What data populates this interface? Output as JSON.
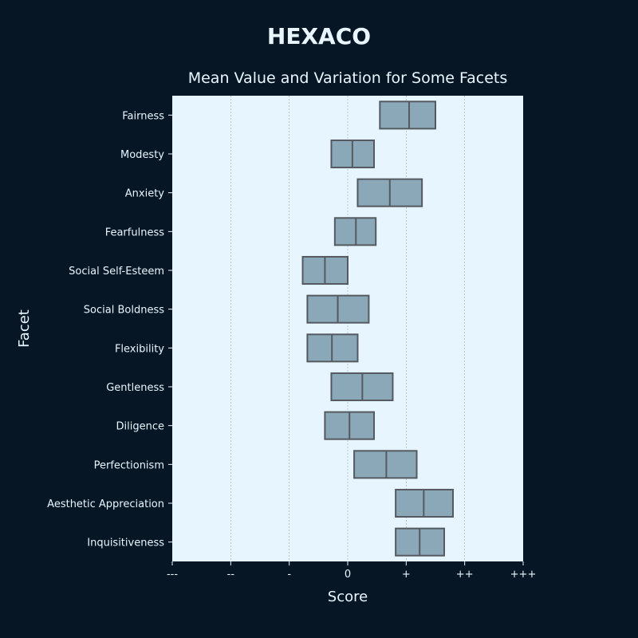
{
  "header": {
    "title": "HEXACO",
    "subtitle": "Mean Value and Variation for Some Facets"
  },
  "colors": {
    "background": "#061625",
    "plot_background": "#e6f5ff",
    "box_fill": "#8aa8b8",
    "box_stroke": "#555a60"
  },
  "chart_data": {
    "type": "box",
    "title": "Mean Value and Variation for Some Facets",
    "xlabel": "Score",
    "ylabel": "Facet",
    "xlim": [
      -3,
      3
    ],
    "x_ticks": [
      -3,
      -2,
      -1,
      0,
      1,
      2,
      3
    ],
    "x_tick_labels": [
      "---",
      "--",
      "-",
      "0",
      "+",
      "++",
      "+++"
    ],
    "grid": "vertical",
    "categories": [
      "Fairness",
      "Modesty",
      "Anxiety",
      "Fearfulness",
      "Social Self-Esteem",
      "Social Boldness",
      "Flexibility",
      "Gentleness",
      "Diligence",
      "Perfectionism",
      "Aesthetic Appreciation",
      "Inquisitiveness"
    ],
    "boxes": [
      {
        "low": 0.55,
        "mean": 1.05,
        "high": 1.5
      },
      {
        "low": -0.28,
        "mean": 0.08,
        "high": 0.45
      },
      {
        "low": 0.17,
        "mean": 0.72,
        "high": 1.27
      },
      {
        "low": -0.22,
        "mean": 0.14,
        "high": 0.48
      },
      {
        "low": -0.77,
        "mean": -0.39,
        "high": 0.0
      },
      {
        "low": -0.69,
        "mean": -0.17,
        "high": 0.36
      },
      {
        "low": -0.69,
        "mean": -0.27,
        "high": 0.17
      },
      {
        "low": -0.28,
        "mean": 0.25,
        "high": 0.77
      },
      {
        "low": -0.39,
        "mean": 0.03,
        "high": 0.45
      },
      {
        "low": 0.11,
        "mean": 0.66,
        "high": 1.18
      },
      {
        "low": 0.82,
        "mean": 1.3,
        "high": 1.8
      },
      {
        "low": 0.82,
        "mean": 1.23,
        "high": 1.65
      }
    ]
  }
}
